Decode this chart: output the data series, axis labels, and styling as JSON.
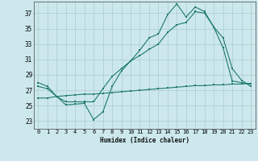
{
  "xlabel": "Humidex (Indice chaleur)",
  "background_color": "#cce8ed",
  "grid_color": "#aacccc",
  "line_color": "#1e7a6a",
  "xlim": [
    -0.5,
    23.5
  ],
  "ylim": [
    22.0,
    38.5
  ],
  "yticks": [
    23,
    25,
    27,
    29,
    31,
    33,
    35,
    37
  ],
  "xticks": [
    0,
    1,
    2,
    3,
    4,
    5,
    6,
    7,
    8,
    9,
    10,
    11,
    12,
    13,
    14,
    15,
    16,
    17,
    18,
    19,
    20,
    21,
    22,
    23
  ],
  "series1_x": [
    0,
    1,
    2,
    3,
    4,
    5,
    6,
    7,
    8,
    9,
    10,
    11,
    12,
    13,
    14,
    15,
    16,
    17,
    18,
    19,
    20,
    21,
    22,
    23
  ],
  "series1_y": [
    28.0,
    27.5,
    26.2,
    25.1,
    25.2,
    25.3,
    23.2,
    24.2,
    27.5,
    29.5,
    30.8,
    32.2,
    33.8,
    34.3,
    36.8,
    38.2,
    36.5,
    37.8,
    37.2,
    35.2,
    32.5,
    28.2,
    28.0,
    27.8
  ],
  "series2_x": [
    0,
    1,
    2,
    3,
    4,
    5,
    6,
    7,
    8,
    9,
    10,
    11,
    12,
    13,
    14,
    15,
    16,
    17,
    18,
    19,
    20,
    21,
    22,
    23
  ],
  "series2_y": [
    27.5,
    27.2,
    26.2,
    25.5,
    25.5,
    25.5,
    25.5,
    27.2,
    28.8,
    29.8,
    30.8,
    31.5,
    32.3,
    33.0,
    34.5,
    35.5,
    35.8,
    37.2,
    37.0,
    35.2,
    33.8,
    29.8,
    28.3,
    27.5
  ],
  "series3_x": [
    0,
    1,
    2,
    3,
    4,
    5,
    6,
    7,
    8,
    9,
    10,
    11,
    12,
    13,
    14,
    15,
    16,
    17,
    18,
    19,
    20,
    21,
    22,
    23
  ],
  "series3_y": [
    26.0,
    26.0,
    26.2,
    26.3,
    26.4,
    26.5,
    26.5,
    26.6,
    26.7,
    26.8,
    26.9,
    27.0,
    27.1,
    27.2,
    27.3,
    27.4,
    27.5,
    27.6,
    27.6,
    27.7,
    27.7,
    27.8,
    27.8,
    27.9
  ]
}
